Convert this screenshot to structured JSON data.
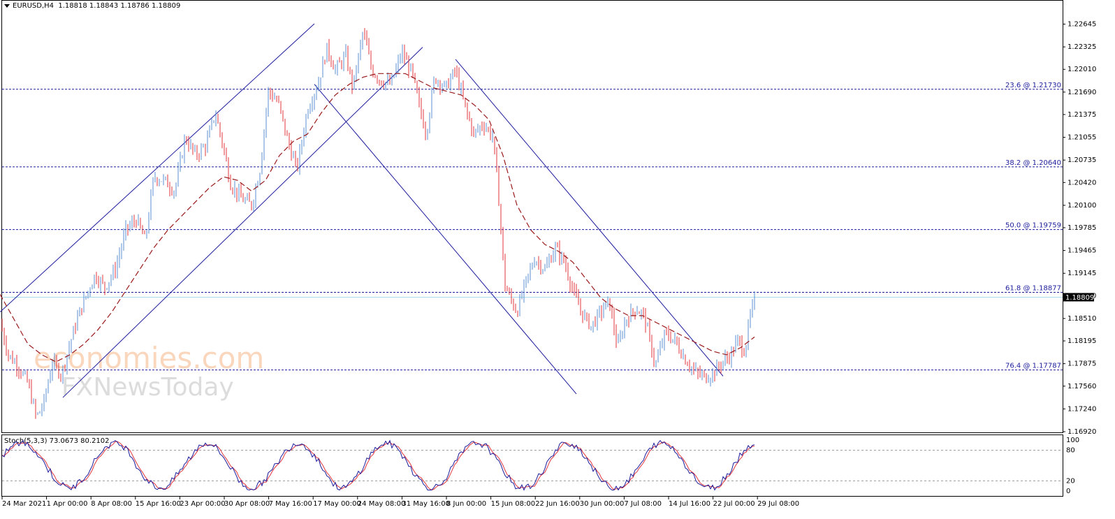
{
  "header": {
    "symbol": "EURUSD,H4",
    "ohlc": "1.18818 1.18843 1.18786 1.18809"
  },
  "stoch_header": "Stoch(5,3,3) 73.0673 80.2102",
  "watermark": {
    "line1": "economies.com",
    "line2": "FXNewsToday"
  },
  "colors": {
    "up": "#5b8fd1",
    "down": "#e0363c",
    "channel": "#1c1c9c",
    "ma": "#9a1a1a",
    "stoch_main": "#1c1c9c",
    "stoch_signal": "#e0363c",
    "price_line": "#a8d8e8"
  },
  "chart_data": {
    "type": "candlestick",
    "timeframe": "H4",
    "price_axis": {
      "min": 1.1692,
      "max": 1.2265,
      "ticks": [
        "1.22645",
        "1.22325",
        "1.22010",
        "1.21690",
        "1.21375",
        "1.21055",
        "1.20735",
        "1.20420",
        "1.20100",
        "1.19785",
        "1.19465",
        "1.19145",
        "1.18830",
        "1.18510",
        "1.18195",
        "1.17875",
        "1.17560",
        "1.17240",
        "1.16920"
      ],
      "current_price": "1.18809"
    },
    "time_axis": [
      "24 Mar 2021",
      "1 Apr 00:00",
      "8 Apr 08:00",
      "15 Apr 16:00",
      "23 Apr 00:00",
      "30 Apr 08:00",
      "7 May 16:00",
      "17 May 00:00",
      "24 May 08:00",
      "31 May 16:00",
      "8 Jun 00:00",
      "15 Jun 08:00",
      "22 Jun 16:00",
      "30 Jun 00:00",
      "7 Jul 08:00",
      "14 Jul 16:00",
      "22 Jul 00:00",
      "29 Jul 08:00"
    ],
    "price_path": [
      [
        0,
        1.1845
      ],
      [
        12,
        1.18
      ],
      [
        25,
        1.1785
      ],
      [
        40,
        1.176
      ],
      [
        52,
        1.1712
      ],
      [
        62,
        1.173
      ],
      [
        75,
        1.179
      ],
      [
        88,
        1.1772
      ],
      [
        100,
        1.1815
      ],
      [
        112,
        1.1855
      ],
      [
        124,
        1.1885
      ],
      [
        136,
        1.1912
      ],
      [
        150,
        1.1895
      ],
      [
        165,
        1.192
      ],
      [
        180,
        1.1975
      ],
      [
        195,
        1.199
      ],
      [
        208,
        1.196
      ],
      [
        220,
        1.205
      ],
      [
        235,
        1.2045
      ],
      [
        250,
        1.203
      ],
      [
        265,
        1.2105
      ],
      [
        280,
        1.208
      ],
      [
        295,
        1.2095
      ],
      [
        308,
        1.214
      ],
      [
        320,
        1.209
      ],
      [
        330,
        1.204
      ],
      [
        345,
        1.202
      ],
      [
        360,
        1.201
      ],
      [
        372,
        1.206
      ],
      [
        384,
        1.217
      ],
      [
        398,
        1.2155
      ],
      [
        412,
        1.21
      ],
      [
        425,
        1.206
      ],
      [
        440,
        1.2145
      ],
      [
        455,
        1.218
      ],
      [
        468,
        1.223
      ],
      [
        480,
        1.22
      ],
      [
        495,
        1.222
      ],
      [
        505,
        1.2175
      ],
      [
        520,
        1.2255
      ],
      [
        532,
        1.22
      ],
      [
        545,
        1.2185
      ],
      [
        560,
        1.218
      ],
      [
        575,
        1.2225
      ],
      [
        590,
        1.2195
      ],
      [
        600,
        1.215
      ],
      [
        610,
        1.211
      ],
      [
        622,
        1.219
      ],
      [
        638,
        1.2175
      ],
      [
        652,
        1.22
      ],
      [
        665,
        1.215
      ],
      [
        678,
        1.211
      ],
      [
        692,
        1.2125
      ],
      [
        706,
        1.2105
      ],
      [
        716,
        1.1995
      ],
      [
        722,
        1.19
      ],
      [
        730,
        1.188
      ],
      [
        740,
        1.186
      ],
      [
        752,
        1.19
      ],
      [
        765,
        1.1935
      ],
      [
        780,
        1.192
      ],
      [
        795,
        1.195
      ],
      [
        808,
        1.193
      ],
      [
        820,
        1.189
      ],
      [
        832,
        1.186
      ],
      [
        846,
        1.184
      ],
      [
        860,
        1.186
      ],
      [
        872,
        1.1875
      ],
      [
        884,
        1.181
      ],
      [
        896,
        1.185
      ],
      [
        910,
        1.1865
      ],
      [
        922,
        1.1855
      ],
      [
        938,
        1.1785
      ],
      [
        952,
        1.183
      ],
      [
        966,
        1.182
      ],
      [
        980,
        1.1795
      ],
      [
        995,
        1.1775
      ],
      [
        1010,
        1.1768
      ],
      [
        1022,
        1.1775
      ],
      [
        1034,
        1.179
      ],
      [
        1046,
        1.18
      ],
      [
        1056,
        1.182
      ],
      [
        1066,
        1.1805
      ],
      [
        1075,
        1.186
      ],
      [
        1082,
        1.1881
      ]
    ],
    "ma_path": [
      [
        0,
        1.1885
      ],
      [
        20,
        1.185
      ],
      [
        40,
        1.1815
      ],
      [
        60,
        1.18
      ],
      [
        80,
        1.179
      ],
      [
        100,
        1.18
      ],
      [
        120,
        1.1815
      ],
      [
        140,
        1.1835
      ],
      [
        160,
        1.186
      ],
      [
        180,
        1.189
      ],
      [
        200,
        1.192
      ],
      [
        220,
        1.195
      ],
      [
        240,
        1.1975
      ],
      [
        260,
        1.1995
      ],
      [
        280,
        1.2015
      ],
      [
        300,
        1.2035
      ],
      [
        320,
        1.205
      ],
      [
        340,
        1.2045
      ],
      [
        360,
        1.203
      ],
      [
        380,
        1.2045
      ],
      [
        400,
        1.208
      ],
      [
        420,
        1.21
      ],
      [
        440,
        1.211
      ],
      [
        460,
        1.214
      ],
      [
        480,
        1.2165
      ],
      [
        500,
        1.218
      ],
      [
        520,
        1.219
      ],
      [
        540,
        1.2195
      ],
      [
        560,
        1.2195
      ],
      [
        580,
        1.2195
      ],
      [
        600,
        1.2185
      ],
      [
        620,
        1.2175
      ],
      [
        640,
        1.217
      ],
      [
        660,
        1.2165
      ],
      [
        680,
        1.215
      ],
      [
        700,
        1.213
      ],
      [
        720,
        1.208
      ],
      [
        740,
        1.201
      ],
      [
        760,
        1.1975
      ],
      [
        780,
        1.1955
      ],
      [
        800,
        1.1945
      ],
      [
        820,
        1.193
      ],
      [
        840,
        1.1905
      ],
      [
        860,
        1.188
      ],
      [
        880,
        1.1865
      ],
      [
        900,
        1.1855
      ],
      [
        920,
        1.1855
      ],
      [
        940,
        1.1845
      ],
      [
        960,
        1.1835
      ],
      [
        980,
        1.1825
      ],
      [
        1000,
        1.1815
      ],
      [
        1020,
        1.1805
      ],
      [
        1040,
        1.18
      ],
      [
        1060,
        1.181
      ],
      [
        1080,
        1.1825
      ]
    ],
    "fibonacci": [
      {
        "label": "23.6 @ 1.21730",
        "price": 1.2173
      },
      {
        "label": "38.2 @ 1.20640",
        "price": 1.2064
      },
      {
        "label": "50.0 @ 1.19759",
        "price": 1.19759
      },
      {
        "label": "61.8 @ 1.18877",
        "price": 1.18877
      },
      {
        "label": "76.4 @ 1.17787",
        "price": 1.17787
      }
    ],
    "channel_lines": [
      [
        [
          0,
          1.186
        ],
        [
          450,
          1.2265
        ]
      ],
      [
        [
          90,
          1.174
        ],
        [
          605,
          1.2232
        ]
      ],
      [
        [
          450,
          1.218
        ],
        [
          825,
          1.1745
        ]
      ],
      [
        [
          652,
          1.2215
        ],
        [
          1035,
          1.177
        ]
      ]
    ],
    "stochastic": {
      "levels": [
        "100",
        "80",
        "20",
        "0"
      ],
      "ref_lines": [
        80,
        20
      ]
    }
  }
}
